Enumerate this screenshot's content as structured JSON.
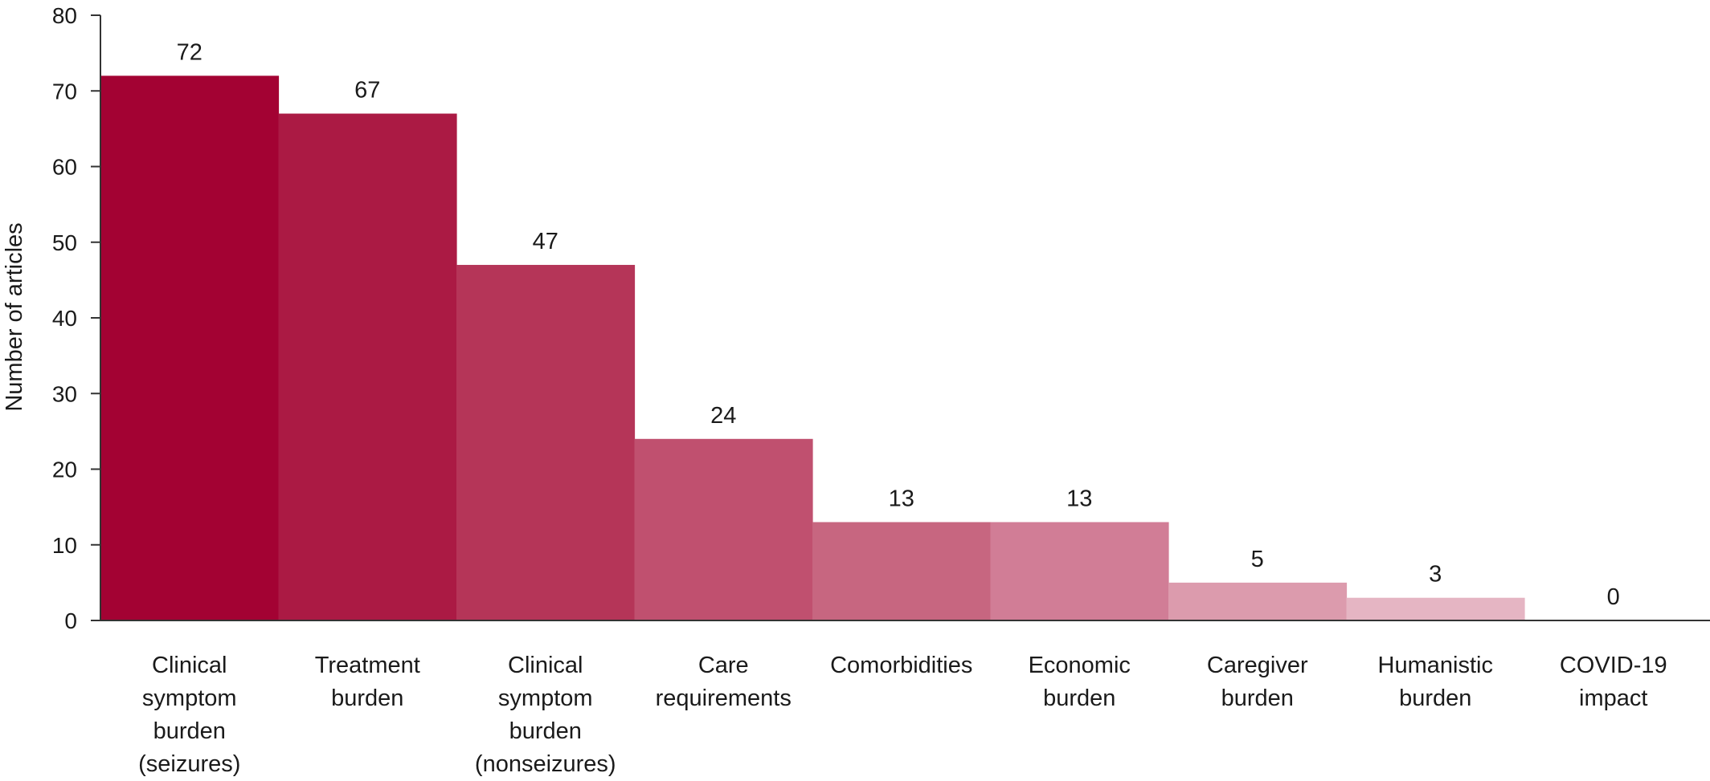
{
  "chart_data": {
    "type": "bar",
    "title": "",
    "xlabel": "",
    "ylabel": "Number of articles",
    "ylim": [
      0,
      80
    ],
    "yticks": [
      0,
      10,
      20,
      30,
      40,
      50,
      60,
      70,
      80
    ],
    "grid": false,
    "legend": "none",
    "categories": [
      "Clinical symptom burden (seizures)",
      "Treatment burden",
      "Clinical symptom burden (nonseizures)",
      "Care requirements",
      "Comorbidities",
      "Economic burden",
      "Caregiver burden",
      "Humanistic burden",
      "COVID-19 impact"
    ],
    "category_lines": [
      [
        "Clinical",
        "symptom",
        "burden",
        "(seizures)"
      ],
      [
        "Treatment",
        "burden"
      ],
      [
        "Clinical",
        "symptom",
        "burden",
        "(nonseizures)"
      ],
      [
        "Care",
        "requirements"
      ],
      [
        "Comorbidities"
      ],
      [
        "Economic",
        "burden"
      ],
      [
        "Caregiver",
        "burden"
      ],
      [
        "Humanistic",
        "burden"
      ],
      [
        "COVID-19",
        "impact"
      ]
    ],
    "values": [
      72,
      67,
      47,
      24,
      13,
      13,
      5,
      3,
      0
    ],
    "colors": [
      "#a30233",
      "#ab1a44",
      "#b53558",
      "#c0506f",
      "#c76680",
      "#d17d96",
      "#dc9bad",
      "#e5b5c3",
      "#f0d3dc"
    ]
  }
}
